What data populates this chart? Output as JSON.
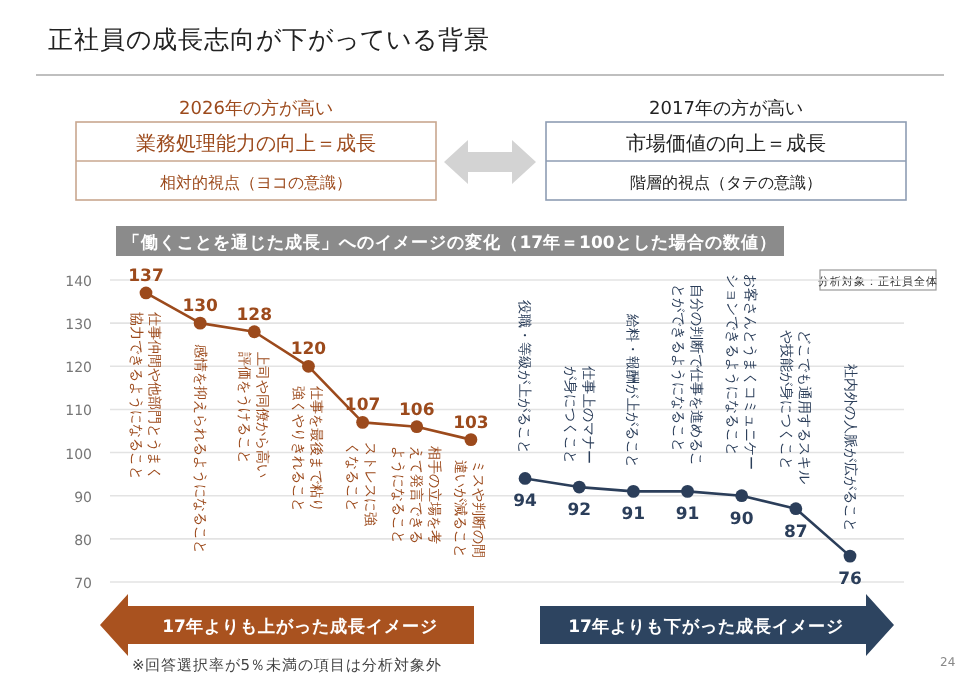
{
  "chart_data": {
    "type": "line",
    "title": "正社員の成長志向が下がっている背景",
    "subtitle": "「働くことを通じた成長」へのイメージの変化（17年＝100とした場合の数値）",
    "categories": [
      "仕事仲間や他部門とうまく協力できるようになること",
      "感情を抑えられるようになること",
      "上司や同僚から高い評価をうけること",
      "仕事を最後まで粘り強くやりきれること",
      "ストレスに強くなること",
      "相手の立場を考えて発言できるようになること",
      "ミスや判断の間違いが減ること",
      "役職・等級が上がること",
      "仕事上のマナーが身につくこと",
      "給料・報酬が上がること",
      "自分の判断で仕事を進めることができるようになること",
      "お客さんとうまくコミュニケーションできるようになること",
      "どこでも通用するスキルや技能が身につくこと",
      "社内外の人脈が広がること"
    ],
    "series": [
      {
        "color": "#9c4a1c",
        "values": [
          137,
          130,
          128,
          120,
          107,
          106,
          103,
          null,
          null,
          null,
          null,
          null,
          null,
          null
        ]
      },
      {
        "color": "#2b3e5a",
        "values": [
          null,
          null,
          null,
          null,
          null,
          null,
          null,
          94,
          92,
          91,
          91,
          90,
          87,
          76
        ]
      }
    ],
    "ylim": [
      70,
      140
    ],
    "yticks": [
      70,
      80,
      90,
      100,
      110,
      120,
      130,
      140
    ],
    "grid": "y",
    "marker": "circle",
    "data_labels": true,
    "annotations": [
      "2026年の方が高い",
      "業務処理能力の向上＝成長",
      "相対的視点（ヨコの意識）",
      "2017年の方が高い",
      "市場価値の向上＝成長",
      "階層的視点（タテの意識）",
      "分析対象：正社員全体",
      "17年よりも上がった成長イメージ",
      "17年よりも下がった成長イメージ",
      "※回答選択率が5％未満の項目は分析対象外",
      "24"
    ]
  }
}
